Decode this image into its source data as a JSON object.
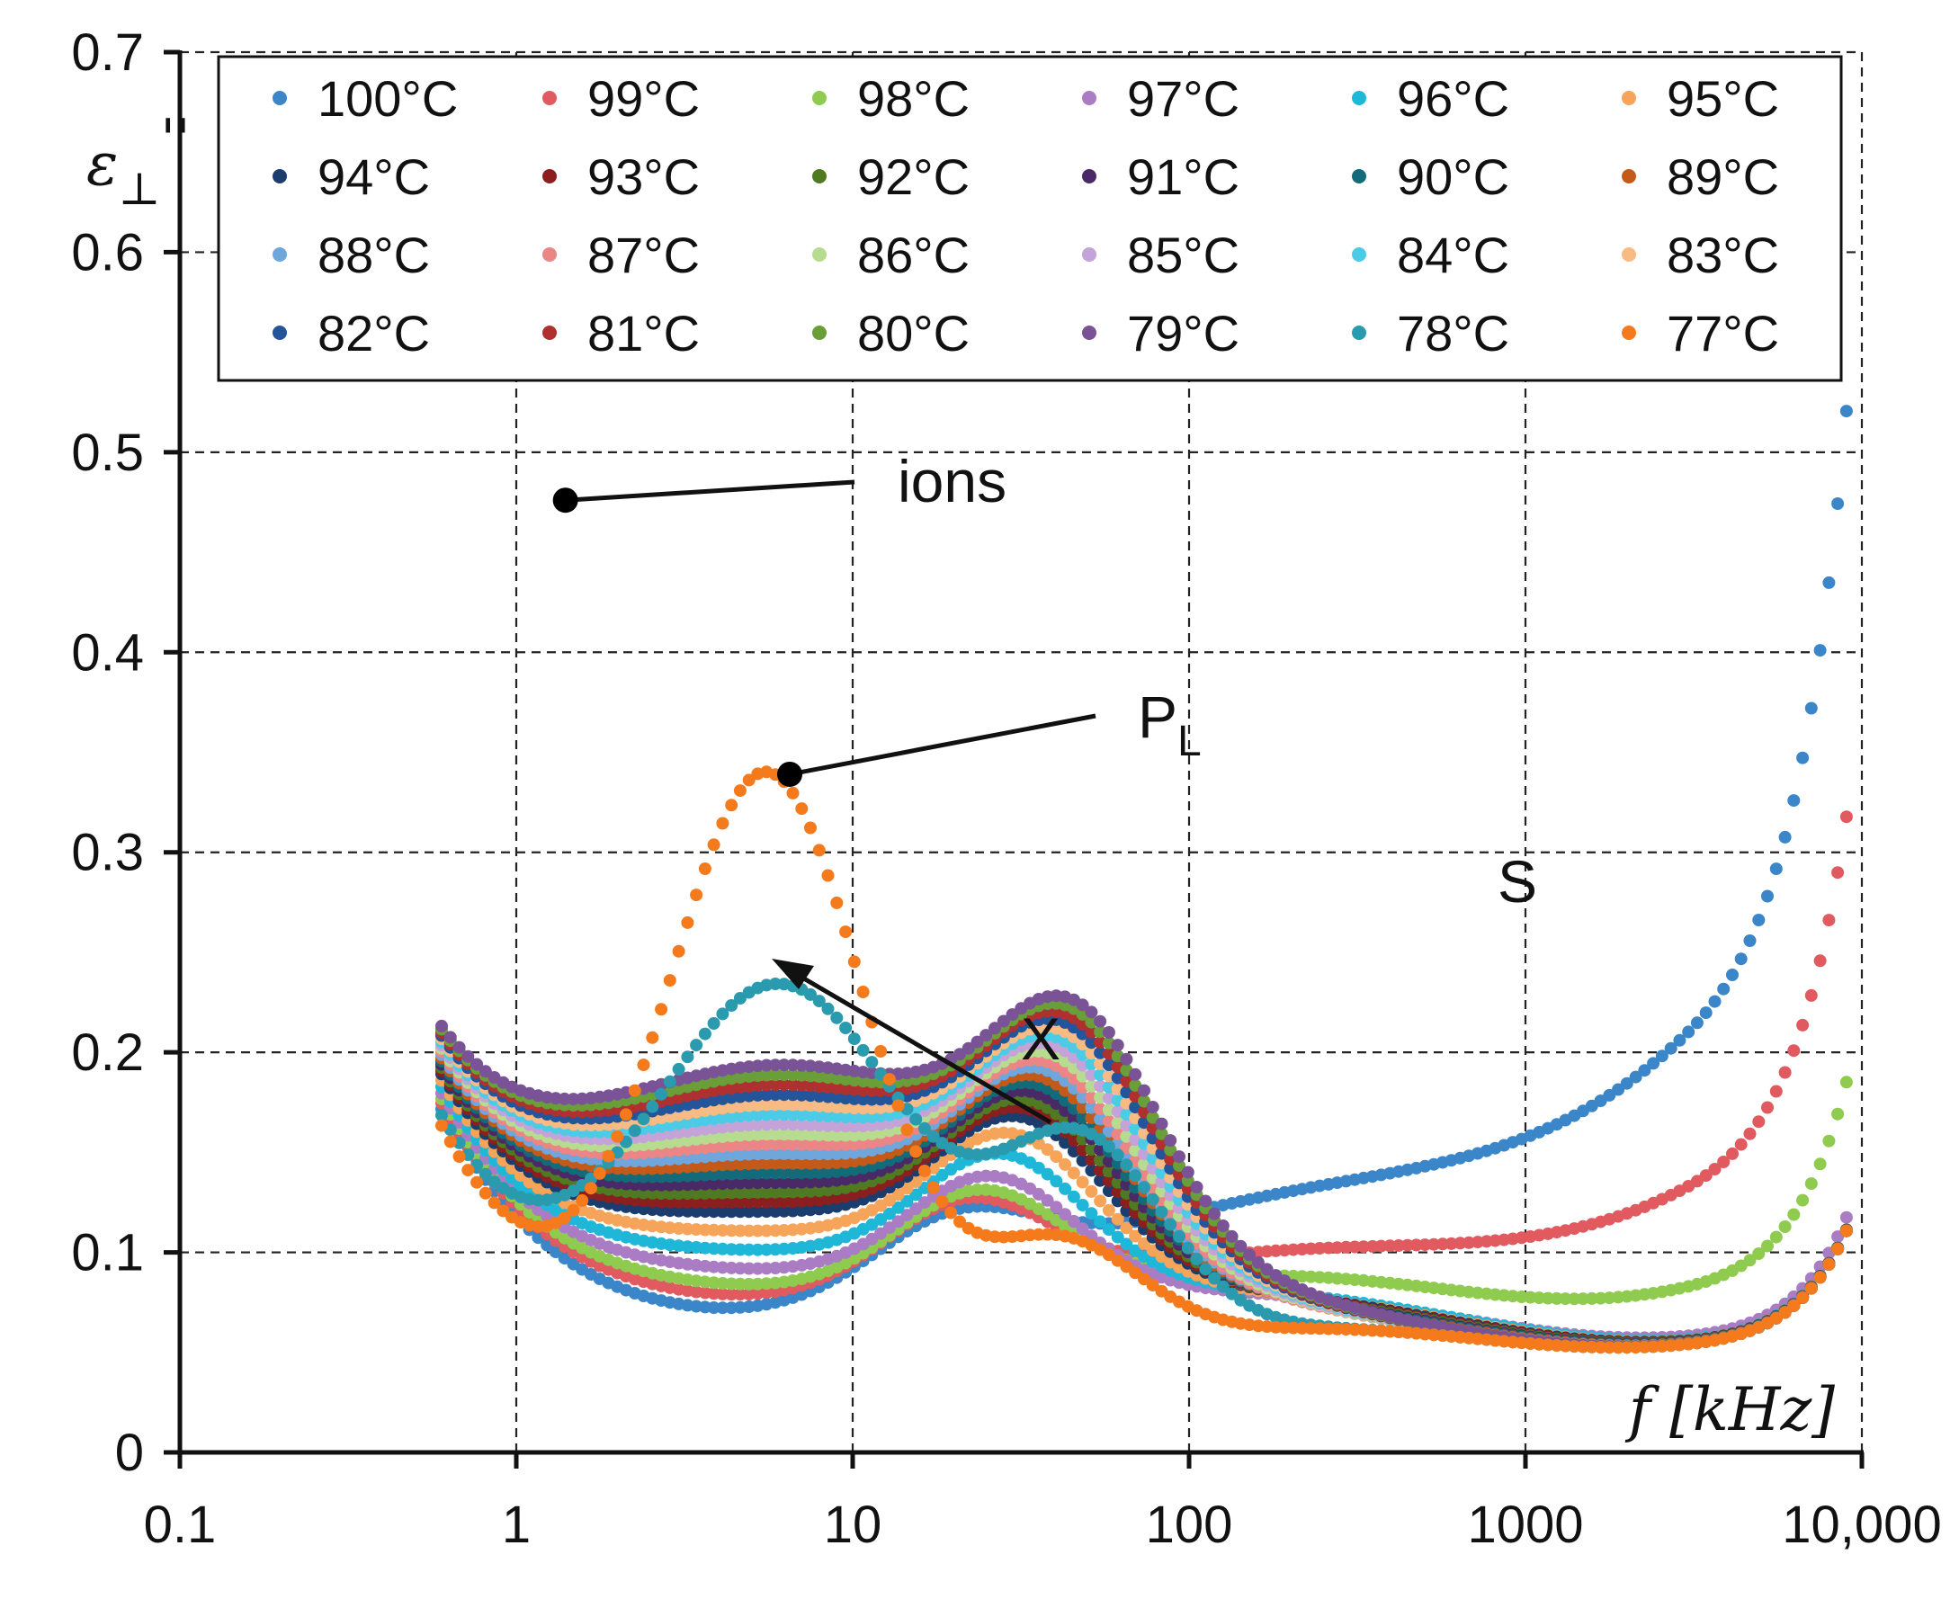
{
  "chart_data": {
    "type": "scatter",
    "title": "",
    "xlabel": "f [kHz]",
    "ylabel": "ε⊥''",
    "xscale": "log",
    "xlim": [
      0.1,
      10000
    ],
    "ylim": [
      0,
      0.7
    ],
    "x_ticks": [
      "0.1",
      "1",
      "10",
      "100",
      "1000",
      "10,000"
    ],
    "y_ticks": [
      "0",
      "0.1",
      "0.2",
      "0.3",
      "0.4",
      "0.5",
      "0.6",
      "0.7"
    ],
    "grid": true,
    "legend_position": "top",
    "annotations": [
      {
        "text": "ions",
        "x": 1.4,
        "y": 0.476
      },
      {
        "text": "P",
        "subscript": "L",
        "x": 6.5,
        "y": 0.339
      },
      {
        "text": "X",
        "x": 5.5,
        "y": 0.245
      },
      {
        "text": "S",
        "x": 1000,
        "y": 0.29
      }
    ],
    "series": [
      {
        "name": "100°C",
        "color": "#3b86c9",
        "params": {
          "ai": 0.088,
          "b": 0.015,
          "hc": 0.02,
          "fh": 7,
          "wb": 1.0,
          "hd": 0.035,
          "fd": 20,
          "bm": 0.065,
          "fm": 150,
          "wm": 1.1,
          "hs": 0.105,
          "ns": 0.48
        }
      },
      {
        "name": "99°C",
        "color": "#e05a5f",
        "params": {
          "ai": 0.088,
          "b": 0.015,
          "hc": 0.035,
          "fh": 7,
          "wb": 1.0,
          "hd": 0.045,
          "fd": 22,
          "bm": 0.055,
          "fm": 170,
          "wm": 1.05,
          "hs": 0.06,
          "ns": 0.5
        }
      },
      {
        "name": "98°C",
        "color": "#8fcb4e",
        "params": {
          "ai": 0.088,
          "b": 0.015,
          "hc": 0.045,
          "fh": 7,
          "wb": 1.0,
          "hd": 0.05,
          "fd": 24,
          "bm": 0.055,
          "fm": 185,
          "wm": 1.0,
          "hs": 0.03,
          "ns": 0.55
        }
      },
      {
        "name": "97°C",
        "color": "#a97cc4",
        "params": {
          "ai": 0.088,
          "b": 0.015,
          "hc": 0.055,
          "fh": 7,
          "wb": 1.0,
          "hd": 0.055,
          "fd": 26,
          "bm": 0.05,
          "fm": 195,
          "wm": 1.0,
          "hs": 0.016,
          "ns": 0.6
        }
      },
      {
        "name": "96°C",
        "color": "#1fb7d8",
        "params": {
          "ai": 0.088,
          "b": 0.015,
          "hc": 0.065,
          "fh": 7,
          "wb": 1.0,
          "hd": 0.06,
          "fd": 28,
          "bm": 0.05,
          "fm": 200,
          "wm": 1.0,
          "hs": 0.015,
          "ns": 0.6
        }
      },
      {
        "name": "95°C",
        "color": "#f5a45a",
        "params": {
          "ai": 0.088,
          "b": 0.015,
          "hc": 0.075,
          "fh": 7,
          "wb": 1.0,
          "hd": 0.065,
          "fd": 30,
          "bm": 0.048,
          "fm": 200,
          "wm": 1.0,
          "hs": 0.015,
          "ns": 0.6
        }
      },
      {
        "name": "94°C",
        "color": "#1a3d6e",
        "params": {
          "ai": 0.088,
          "b": 0.015,
          "hc": 0.085,
          "fh": 7,
          "wb": 1.0,
          "hd": 0.068,
          "fd": 32,
          "bm": 0.047,
          "fm": 200,
          "wm": 1.0,
          "hs": 0.015,
          "ns": 0.6
        }
      },
      {
        "name": "93°C",
        "color": "#8b1e1e",
        "params": {
          "ai": 0.088,
          "b": 0.015,
          "hc": 0.09,
          "fh": 7,
          "wb": 1.0,
          "hd": 0.07,
          "fd": 33,
          "bm": 0.046,
          "fm": 200,
          "wm": 1.0,
          "hs": 0.015,
          "ns": 0.6
        }
      },
      {
        "name": "92°C",
        "color": "#4f7a22",
        "params": {
          "ai": 0.088,
          "b": 0.015,
          "hc": 0.095,
          "fh": 7,
          "wb": 1.0,
          "hd": 0.072,
          "fd": 34,
          "bm": 0.045,
          "fm": 200,
          "wm": 1.0,
          "hs": 0.015,
          "ns": 0.6
        }
      },
      {
        "name": "91°C",
        "color": "#4a2a66",
        "params": {
          "ai": 0.088,
          "b": 0.015,
          "hc": 0.1,
          "fh": 7,
          "wb": 1.0,
          "hd": 0.074,
          "fd": 35,
          "bm": 0.044,
          "fm": 200,
          "wm": 1.0,
          "hs": 0.015,
          "ns": 0.6
        }
      },
      {
        "name": "90°C",
        "color": "#136b7a",
        "params": {
          "ai": 0.088,
          "b": 0.015,
          "hc": 0.105,
          "fh": 7,
          "wb": 1.0,
          "hd": 0.076,
          "fd": 36,
          "bm": 0.043,
          "fm": 200,
          "wm": 1.0,
          "hs": 0.015,
          "ns": 0.6
        }
      },
      {
        "name": "89°C",
        "color": "#c45a1a",
        "params": {
          "ai": 0.088,
          "b": 0.015,
          "hc": 0.11,
          "fh": 7,
          "wb": 1.0,
          "hd": 0.078,
          "fd": 37,
          "bm": 0.042,
          "fm": 200,
          "wm": 1.0,
          "hs": 0.015,
          "ns": 0.6
        }
      },
      {
        "name": "88°C",
        "color": "#6fa6dc",
        "params": {
          "ai": 0.088,
          "b": 0.015,
          "hc": 0.115,
          "fh": 7,
          "wb": 1.0,
          "hd": 0.08,
          "fd": 38,
          "bm": 0.041,
          "fm": 200,
          "wm": 1.0,
          "hs": 0.015,
          "ns": 0.6
        }
      },
      {
        "name": "87°C",
        "color": "#ec8585",
        "params": {
          "ai": 0.088,
          "b": 0.015,
          "hc": 0.12,
          "fh": 7,
          "wb": 1.0,
          "hd": 0.082,
          "fd": 39,
          "bm": 0.04,
          "fm": 200,
          "wm": 1.0,
          "hs": 0.015,
          "ns": 0.6
        }
      },
      {
        "name": "86°C",
        "color": "#b7dc8f",
        "params": {
          "ai": 0.088,
          "b": 0.015,
          "hc": 0.125,
          "fh": 7,
          "wb": 1.0,
          "hd": 0.084,
          "fd": 40,
          "bm": 0.04,
          "fm": 200,
          "wm": 1.0,
          "hs": 0.015,
          "ns": 0.6
        }
      },
      {
        "name": "85°C",
        "color": "#c4a3d8",
        "params": {
          "ai": 0.088,
          "b": 0.015,
          "hc": 0.13,
          "fh": 7,
          "wb": 1.0,
          "hd": 0.086,
          "fd": 41,
          "bm": 0.04,
          "fm": 200,
          "wm": 1.0,
          "hs": 0.015,
          "ns": 0.6
        }
      },
      {
        "name": "84°C",
        "color": "#4ccbe6",
        "params": {
          "ai": 0.088,
          "b": 0.015,
          "hc": 0.135,
          "fh": 7,
          "wb": 1.0,
          "hd": 0.088,
          "fd": 42,
          "bm": 0.04,
          "fm": 200,
          "wm": 1.0,
          "hs": 0.015,
          "ns": 0.6
        }
      },
      {
        "name": "83°C",
        "color": "#f8bb84",
        "params": {
          "ai": 0.088,
          "b": 0.015,
          "hc": 0.14,
          "fh": 7,
          "wb": 1.0,
          "hd": 0.09,
          "fd": 43,
          "bm": 0.04,
          "fm": 200,
          "wm": 1.0,
          "hs": 0.015,
          "ns": 0.6
        }
      },
      {
        "name": "82°C",
        "color": "#24559a",
        "params": {
          "ai": 0.088,
          "b": 0.015,
          "hc": 0.145,
          "fh": 7,
          "wb": 1.0,
          "hd": 0.092,
          "fd": 44,
          "bm": 0.04,
          "fm": 200,
          "wm": 1.0,
          "hs": 0.015,
          "ns": 0.6
        }
      },
      {
        "name": "81°C",
        "color": "#b03030",
        "params": {
          "ai": 0.088,
          "b": 0.015,
          "hc": 0.15,
          "fh": 7,
          "wb": 1.0,
          "hd": 0.094,
          "fd": 45,
          "bm": 0.04,
          "fm": 200,
          "wm": 1.0,
          "hs": 0.015,
          "ns": 0.6
        }
      },
      {
        "name": "80°C",
        "color": "#6a9e38",
        "params": {
          "ai": 0.088,
          "b": 0.015,
          "hc": 0.155,
          "fh": 7,
          "wb": 1.0,
          "hd": 0.096,
          "fd": 46,
          "bm": 0.04,
          "fm": 200,
          "wm": 1.0,
          "hs": 0.015,
          "ns": 0.6
        }
      },
      {
        "name": "79°C",
        "color": "#7a5296",
        "params": {
          "ai": 0.088,
          "b": 0.015,
          "hc": 0.16,
          "fh": 7,
          "wb": 1.0,
          "hd": 0.098,
          "fd": 47,
          "bm": 0.04,
          "fm": 200,
          "wm": 1.0,
          "hs": 0.015,
          "ns": 0.6
        }
      },
      {
        "name": "78°C",
        "color": "#2a9aae",
        "params": {
          "ai": 0.088,
          "b": 0.015,
          "hc": 0.2,
          "fh": 6.2,
          "wb": 0.55,
          "hd": 0.1,
          "fd": 48,
          "bm": 0.04,
          "fm": 200,
          "wm": 1.0,
          "hs": 0.015,
          "ns": 0.6
        }
      },
      {
        "name": "77°C",
        "color": "#f57a1c",
        "params": {
          "ai": 0.088,
          "b": 0.015,
          "hc": 0.305,
          "fh": 5.6,
          "wb": 0.42,
          "hd": 0.06,
          "fd": 40,
          "bm": 0.04,
          "fm": 200,
          "wm": 1.0,
          "hs": 0.015,
          "ns": 0.6
        }
      }
    ]
  }
}
